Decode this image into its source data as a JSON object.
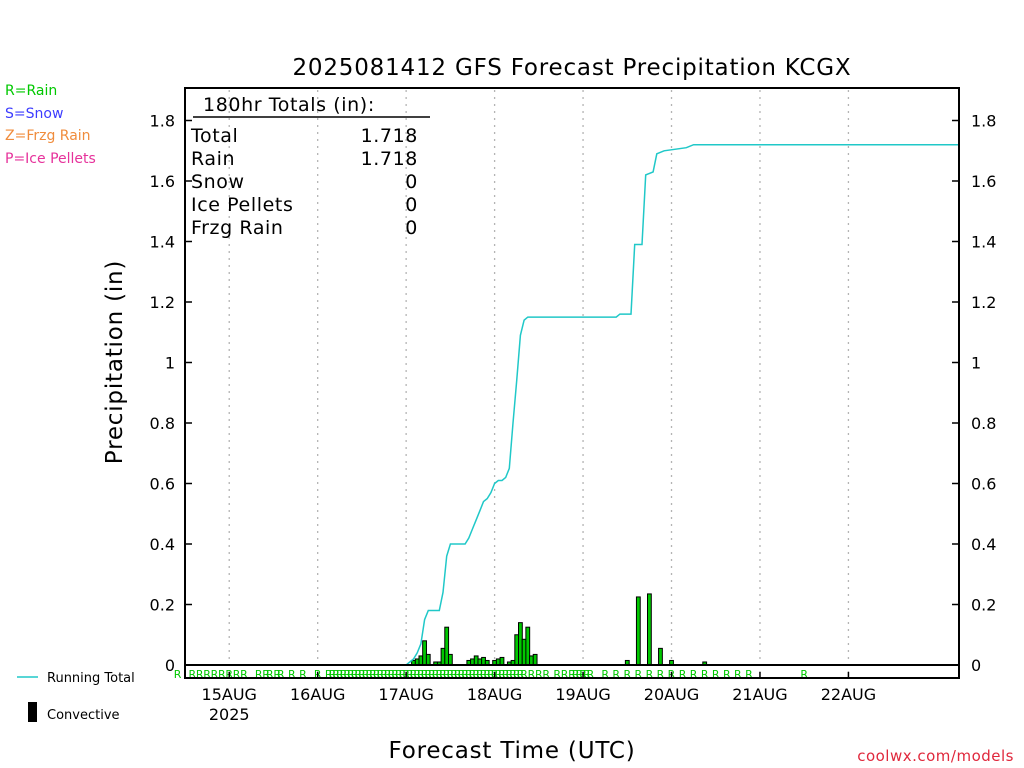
{
  "chart_data": {
    "type": "bar",
    "title": "2025081412 GFS Forecast Precipitation KCGX",
    "xlabel": "Forecast Time (UTC)",
    "ylabel": "Precipitation (in)",
    "credit": "coolwx.com/models",
    "ylim": [
      0,
      1.88
    ],
    "yticks": [
      0,
      0.2,
      0.4,
      0.6,
      0.8,
      1,
      1.2,
      1.4,
      1.6,
      1.8
    ],
    "ytick_labels": [
      "0",
      "0.2",
      "0.4",
      "0.6",
      "0.8",
      "1",
      "1.2",
      "1.4",
      "1.6",
      "1.8"
    ],
    "xlim_hours": [
      -30,
      180
    ],
    "x_start_hours": [
      0
    ],
    "xticks": [
      {
        "h": -18,
        "label": "15AUG",
        "sub": "2025"
      },
      {
        "h": 6,
        "label": "16AUG",
        "sub": ""
      },
      {
        "h": 30,
        "label": "17AUG",
        "sub": ""
      },
      {
        "h": 54,
        "label": "18AUG",
        "sub": ""
      },
      {
        "h": 78,
        "label": "19AUG",
        "sub": ""
      },
      {
        "h": 102,
        "label": "20AUG",
        "sub": ""
      },
      {
        "h": 126,
        "label": "21AUG",
        "sub": ""
      },
      {
        "h": 150,
        "label": "22AUG",
        "sub": ""
      }
    ],
    "grid": true,
    "legend_left": [
      {
        "text": "R=Rain",
        "color": "#00c800"
      },
      {
        "text": "S=Snow",
        "color": "#3c3cff"
      },
      {
        "text": "Z=Frzg Rain",
        "color": "#f08c3c"
      },
      {
        "text": "P=Ice Pellets",
        "color": "#e6329b"
      }
    ],
    "legend_bottom": [
      {
        "text": "Running Total",
        "symbol": "line",
        "color": "#20c8c8"
      },
      {
        "text": "Convective",
        "symbol": "bar",
        "color": "#000000"
      }
    ],
    "totals_box": {
      "heading": "180hr Totals (in):",
      "rows": [
        {
          "label": "Total",
          "value": "1.718"
        },
        {
          "label": "Rain",
          "value": "1.718"
        },
        {
          "label": "Snow",
          "value": "0"
        },
        {
          "label": "Ice Pellets",
          "value": "0"
        },
        {
          "label": "Frzg Rain",
          "value": "0"
        }
      ]
    },
    "series": [
      {
        "name": "Running Total",
        "color": "#20c8c8",
        "points": [
          [
            -30,
            0
          ],
          [
            30,
            0
          ],
          [
            31,
            0.01
          ],
          [
            32,
            0.02
          ],
          [
            33,
            0.04
          ],
          [
            34,
            0.07
          ],
          [
            35,
            0.15
          ],
          [
            36,
            0.18
          ],
          [
            39,
            0.18
          ],
          [
            40,
            0.24
          ],
          [
            41,
            0.36
          ],
          [
            42,
            0.4
          ],
          [
            46,
            0.4
          ],
          [
            47,
            0.42
          ],
          [
            48,
            0.45
          ],
          [
            49,
            0.48
          ],
          [
            50,
            0.51
          ],
          [
            51,
            0.54
          ],
          [
            52,
            0.55
          ],
          [
            53,
            0.57
          ],
          [
            54,
            0.6
          ],
          [
            55,
            0.61
          ],
          [
            56,
            0.61
          ],
          [
            57,
            0.62
          ],
          [
            58,
            0.65
          ],
          [
            59,
            0.8
          ],
          [
            60,
            0.94
          ],
          [
            61,
            1.09
          ],
          [
            62,
            1.14
          ],
          [
            63,
            1.15
          ],
          [
            87,
            1.15
          ],
          [
            88,
            1.16
          ],
          [
            91,
            1.16
          ],
          [
            92,
            1.39
          ],
          [
            94,
            1.39
          ],
          [
            95,
            1.62
          ],
          [
            97,
            1.63
          ],
          [
            98,
            1.69
          ],
          [
            100,
            1.7
          ],
          [
            106,
            1.71
          ],
          [
            108,
            1.72
          ],
          [
            180,
            1.72
          ]
        ]
      },
      {
        "name": "Rain",
        "color": "#00c800",
        "bars": [
          [
            32,
            0.015
          ],
          [
            33,
            0.02
          ],
          [
            34,
            0.03
          ],
          [
            35,
            0.08
          ],
          [
            36,
            0.035
          ],
          [
            38,
            0.01
          ],
          [
            39,
            0.01
          ],
          [
            40,
            0.055
          ],
          [
            41,
            0.125
          ],
          [
            42,
            0.035
          ],
          [
            47,
            0.015
          ],
          [
            48,
            0.02
          ],
          [
            49,
            0.03
          ],
          [
            50,
            0.02
          ],
          [
            51,
            0.025
          ],
          [
            52,
            0.015
          ],
          [
            54,
            0.015
          ],
          [
            55,
            0.02
          ],
          [
            56,
            0.025
          ],
          [
            58,
            0.01
          ],
          [
            59,
            0.015
          ],
          [
            60,
            0.1
          ],
          [
            61,
            0.14
          ],
          [
            62,
            0.085
          ],
          [
            63,
            0.125
          ],
          [
            64,
            0.03
          ],
          [
            65,
            0.035
          ],
          [
            90,
            0.015
          ],
          [
            93,
            0.225
          ],
          [
            96,
            0.235
          ],
          [
            99,
            0.055
          ],
          [
            102,
            0.015
          ],
          [
            111,
            0.01
          ]
        ]
      }
    ],
    "ptype_marks": {
      "letter": "R",
      "color": "#00c800",
      "hours": [
        -32,
        -28,
        -26,
        -24,
        -22,
        -20,
        -18,
        -16,
        -14,
        -10,
        -8,
        -7,
        -5,
        -4,
        -1,
        2,
        6,
        9,
        10,
        11,
        12,
        13,
        14,
        15,
        16,
        17,
        18,
        19,
        20,
        21,
        22,
        23,
        24,
        25,
        26,
        27,
        28,
        29,
        30,
        31,
        32,
        33,
        34,
        35,
        36,
        37,
        38,
        39,
        40,
        41,
        42,
        43,
        44,
        45,
        46,
        47,
        48,
        49,
        50,
        51,
        52,
        53,
        54,
        55,
        56,
        57,
        58,
        59,
        60,
        61,
        62,
        64,
        66,
        68,
        71,
        73,
        75,
        76,
        77,
        78,
        79,
        80,
        84,
        87,
        90,
        93,
        96,
        99,
        102,
        105,
        108,
        111,
        114,
        117,
        120,
        123,
        138
      ]
    }
  }
}
